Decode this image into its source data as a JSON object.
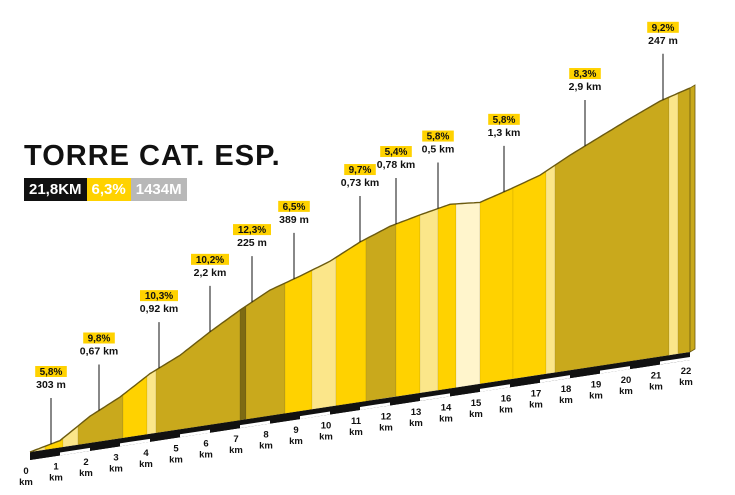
{
  "title": "TORRE CAT. ESP.",
  "stats": {
    "distance": "21,8KM",
    "gradient": "6,3%",
    "elevation": "1434M"
  },
  "colors": {
    "yellow": "#ffd200",
    "olive": "#c9a91c",
    "dark_olive": "#7d6a13",
    "pale": "#fbe68a",
    "cream": "#fff5cc",
    "black": "#111111",
    "grey": "#b8b8b8"
  },
  "chart_data": {
    "type": "area",
    "title": "TORRE CAT. ESP.",
    "xlabel": "",
    "ylabel": "",
    "x_unit": "km",
    "xlim": [
      0,
      22
    ],
    "x_ticks": [
      0,
      1,
      2,
      3,
      4,
      5,
      6,
      7,
      8,
      9,
      10,
      11,
      12,
      13,
      14,
      15,
      16,
      17,
      18,
      19,
      20,
      21,
      22
    ],
    "grid": false,
    "profile": [
      {
        "km": 0,
        "rel": 0
      },
      {
        "km": 0.5,
        "rel": 0.4
      },
      {
        "km": 1,
        "rel": 0.8
      },
      {
        "km": 2,
        "rel": 3.1
      },
      {
        "km": 3,
        "rel": 4.8
      },
      {
        "km": 4,
        "rel": 7.0
      },
      {
        "km": 5,
        "rel": 8.6
      },
      {
        "km": 6,
        "rel": 10.8
      },
      {
        "km": 7,
        "rel": 12.8
      },
      {
        "km": 8,
        "rel": 14.6
      },
      {
        "km": 9,
        "rel": 15.7
      },
      {
        "km": 10,
        "rel": 16.9
      },
      {
        "km": 11,
        "rel": 18.6
      },
      {
        "km": 12,
        "rel": 19.9
      },
      {
        "km": 13,
        "rel": 20.7
      },
      {
        "km": 14,
        "rel": 21.4
      },
      {
        "km": 15,
        "rel": 21.1
      },
      {
        "km": 16,
        "rel": 22.1
      },
      {
        "km": 17,
        "rel": 23.2
      },
      {
        "km": 18,
        "rel": 25.0
      },
      {
        "km": 19,
        "rel": 26.6
      },
      {
        "km": 20,
        "rel": 28.2
      },
      {
        "km": 21,
        "rel": 29.7
      },
      {
        "km": 22,
        "rel": 30.7
      }
    ],
    "segments": [
      {
        "from": 0,
        "to": 0.5,
        "color": "pale"
      },
      {
        "from": 0.5,
        "to": 1.1,
        "color": "yellow"
      },
      {
        "from": 1.1,
        "to": 1.6,
        "color": "pale"
      },
      {
        "from": 1.6,
        "to": 3.1,
        "color": "olive"
      },
      {
        "from": 3.1,
        "to": 3.9,
        "color": "yellow"
      },
      {
        "from": 3.9,
        "to": 4.2,
        "color": "pale"
      },
      {
        "from": 4.2,
        "to": 7.0,
        "color": "olive"
      },
      {
        "from": 7.0,
        "to": 7.2,
        "color": "dark_olive"
      },
      {
        "from": 7.2,
        "to": 8.5,
        "color": "olive"
      },
      {
        "from": 8.5,
        "to": 9.4,
        "color": "yellow"
      },
      {
        "from": 9.4,
        "to": 10.2,
        "color": "pale"
      },
      {
        "from": 10.2,
        "to": 11.2,
        "color": "yellow"
      },
      {
        "from": 11.2,
        "to": 12.2,
        "color": "olive"
      },
      {
        "from": 12.2,
        "to": 13.0,
        "color": "yellow"
      },
      {
        "from": 13.0,
        "to": 13.6,
        "color": "pale"
      },
      {
        "from": 13.6,
        "to": 14.2,
        "color": "yellow"
      },
      {
        "from": 14.2,
        "to": 15.0,
        "color": "cream"
      },
      {
        "from": 15.0,
        "to": 16.1,
        "color": "yellow"
      },
      {
        "from": 16.1,
        "to": 17.2,
        "color": "yellow"
      },
      {
        "from": 17.2,
        "to": 17.5,
        "color": "pale"
      },
      {
        "from": 17.5,
        "to": 21.3,
        "color": "olive"
      },
      {
        "from": 21.3,
        "to": 21.6,
        "color": "pale"
      },
      {
        "from": 21.6,
        "to": 22,
        "color": "olive"
      }
    ],
    "annotations": [
      {
        "grade": "5,8%",
        "length": "303 m",
        "km": 0.7
      },
      {
        "grade": "9,8%",
        "length": "0,67 km",
        "km": 2.3
      },
      {
        "grade": "10,3%",
        "length": "0,92 km",
        "km": 4.3
      },
      {
        "grade": "10,2%",
        "length": "2,2 km",
        "km": 6.0
      },
      {
        "grade": "12,3%",
        "length": "225 m",
        "km": 7.4
      },
      {
        "grade": "6,5%",
        "length": "389 m",
        "km": 8.8
      },
      {
        "grade": "9,7%",
        "length": "0,73 km",
        "km": 11.0
      },
      {
        "grade": "5,4%",
        "length": "0,78 km",
        "km": 12.2
      },
      {
        "grade": "5,8%",
        "length": "0,5 km",
        "km": 13.6
      },
      {
        "grade": "5,8%",
        "length": "1,3 km",
        "km": 15.8
      },
      {
        "grade": "8,3%",
        "length": "2,9 km",
        "km": 18.5
      },
      {
        "grade": "9,2%",
        "length": "247 m",
        "km": 21.1
      }
    ]
  }
}
